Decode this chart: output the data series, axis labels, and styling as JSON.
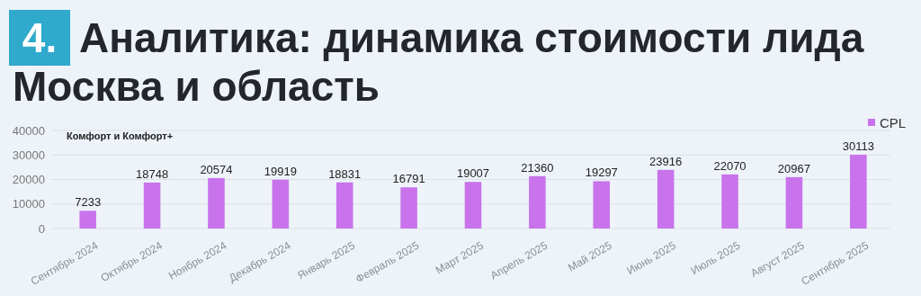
{
  "chart_data": {
    "type": "bar",
    "title": "Аналитика: динамика стоимости лида Москва и область",
    "annotations": [
      "4.",
      "Комфорт и Комфорт+"
    ],
    "categories": [
      "Сентябрь 2024",
      "Октябрь 2024",
      "Ноябрь 2024",
      "Декабрь 2024",
      "Январь 2025",
      "Февраль 2025",
      "Март 2025",
      "Апрель 2025",
      "Май 2025",
      "Июнь 2025",
      "Июль 2025",
      "Август 2025",
      "Сентябрь 2025"
    ],
    "series": [
      {
        "name": "CPL",
        "color": "#c873eb",
        "values": [
          7233,
          18748,
          20574,
          19919,
          18831,
          16791,
          19007,
          21360,
          19297,
          23916,
          22070,
          20967,
          30113
        ]
      }
    ],
    "ylim": [
      0,
      40000
    ],
    "yticks": [
      0,
      10000,
      20000,
      30000,
      40000
    ],
    "grid": "y",
    "legend": "top right",
    "data_labels": true
  }
}
